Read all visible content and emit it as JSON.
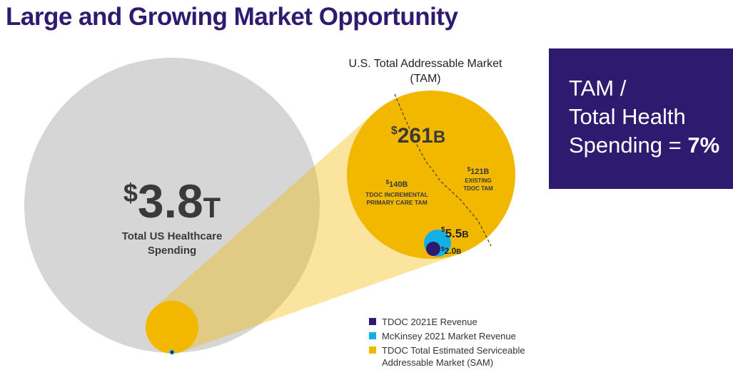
{
  "title": "Large and Growing Market Opportunity",
  "colors": {
    "title": "#2e1a6e",
    "purple": "#2e1a6e",
    "gray": "#d6d6d6",
    "gold": "#f2b800",
    "teal": "#13b0e6",
    "cone": "#f4dc8c",
    "dark_text": "#3a3a3a"
  },
  "tam_box": {
    "line1": "TAM /",
    "line2": "Total Health",
    "line3_prefix": "Spending = ",
    "line3_value": "7%"
  },
  "legend": [
    {
      "label": "TDOC 2021E Revenue",
      "color": "#2e1a6e"
    },
    {
      "label": "McKinsey 2021 Market Revenue",
      "color": "#13b0e6"
    },
    {
      "label": "TDOC Total Estimated Serviceable\nAddressable Market (SAM)",
      "color": "#f2b800"
    }
  ],
  "chart_data": {
    "type": "nested-bubble",
    "title": "Large and Growing Market Opportunity",
    "tam_title_line1": "U.S. Total Addressable Market",
    "tam_title_line2": "(TAM)",
    "units": "USD",
    "bubbles": [
      {
        "id": "total",
        "name": "Total US Healthcare Spending",
        "value_billions": 3800,
        "label_symbol": "$",
        "label_number": "3.8",
        "label_unit": "T",
        "caption_line1": "Total US Healthcare",
        "caption_line2": "Spending"
      },
      {
        "id": "tam",
        "name": "U.S. Total Addressable Market (TAM)",
        "value_billions": 261,
        "label_symbol": "$",
        "label_number": "261",
        "label_unit": "B"
      },
      {
        "id": "mckinsey",
        "name": "McKinsey 2021 Market Revenue",
        "value_billions": 5.5,
        "label_symbol": "$",
        "label_number": "5.5",
        "label_unit": "B"
      },
      {
        "id": "revenue",
        "name": "TDOC 2021E Revenue",
        "value_billions": 2.0,
        "label_symbol": "$",
        "label_number": "2.0",
        "label_unit": "B"
      }
    ],
    "segments": [
      {
        "name": "TDOC Incremental Primary Care TAM",
        "value_billions": 140,
        "label_symbol": "$",
        "label_number": "140",
        "label_unit": "B",
        "caption_line1": "TDOC INCREMENTAL",
        "caption_line2": "PRIMARY CARE TAM"
      },
      {
        "name": "Existing TDOC TAM",
        "value_billions": 121,
        "label_symbol": "$",
        "label_number": "121",
        "label_unit": "B",
        "caption_line1": "EXISTING",
        "caption_line2": "TDOC TAM"
      }
    ]
  }
}
